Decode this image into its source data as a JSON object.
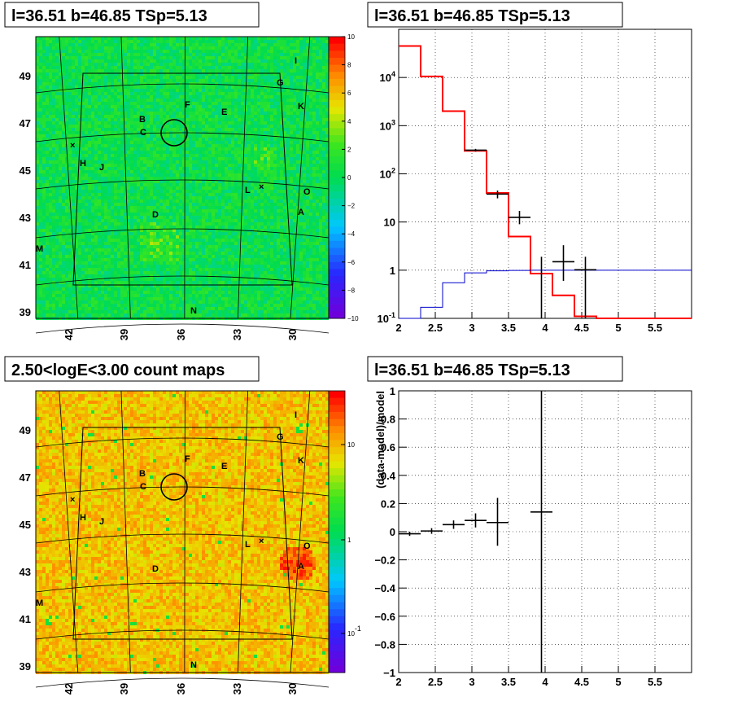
{
  "colors": {
    "model_total": "#ff0000",
    "model_bkg": "#0000cc",
    "data": "#000000"
  },
  "chart_data": [
    {
      "id": "sig-map",
      "type": "heatmap",
      "title": "l=36.51 b=46.85 TSp=5.13",
      "xlabel": "",
      "ylabel": "",
      "x_ticks": [
        "42",
        "39",
        "36",
        "33",
        "30"
      ],
      "y_ticks": [
        "49",
        "47",
        "45",
        "43",
        "41",
        "39"
      ],
      "colorbar": {
        "range": [
          -10,
          10
        ],
        "ticks": [
          "10",
          "8",
          "6",
          "4",
          "2",
          "0",
          "−2",
          "−4",
          "−6",
          "−8",
          "−10"
        ]
      },
      "sources": [
        "I",
        "G",
        "F",
        "E",
        "K",
        "B",
        "C",
        "H",
        "J",
        "L",
        "O",
        "A",
        "D",
        "M",
        "N"
      ]
    },
    {
      "id": "spectrum",
      "type": "line",
      "title": "l=36.51 b=46.85 TSp=5.13",
      "xlabel": "",
      "ylabel": "",
      "log_y": true,
      "xlim": [
        2,
        6
      ],
      "ylim": [
        0.1,
        100000
      ],
      "x_ticks": [
        "2",
        "2.5",
        "3",
        "3.5",
        "4",
        "4.5",
        "5",
        "5.5"
      ],
      "y_ticks": [
        "10^{-1}",
        "1",
        "10",
        "10^{2}",
        "10^{3}",
        "10^{4}"
      ],
      "bin_edges": [
        2.0,
        2.3,
        2.6,
        2.9,
        3.2,
        3.5,
        3.8,
        4.1,
        4.4,
        4.7,
        5.0,
        5.3,
        5.6,
        5.9,
        6.0
      ],
      "series": [
        {
          "style": "step",
          "color": "red",
          "values": [
            45000,
            10500,
            2000,
            300,
            40,
            5,
            0.85,
            0.3,
            0.11,
            0.1,
            0.1,
            0.1,
            0.1,
            0.1
          ]
        },
        {
          "style": "step",
          "color": "blue",
          "values": [
            0.1,
            0.17,
            0.55,
            0.88,
            0.97,
            0.99,
            1.0,
            1.0,
            1.0,
            1.0,
            1.0,
            1.0,
            1.0,
            1.0
          ]
        },
        {
          "style": "errorbar",
          "color": "black",
          "points": [
            {
              "x": 3.05,
              "y": 310,
              "xerr": 0.15,
              "ylo": 290,
              "yhi": 330
            },
            {
              "x": 3.35,
              "y": 38,
              "xerr": 0.15,
              "ylo": 31,
              "yhi": 45
            },
            {
              "x": 3.65,
              "y": 12.5,
              "xerr": 0.15,
              "ylo": 9,
              "yhi": 17
            },
            {
              "x": 3.95,
              "y": 0.5,
              "xerr": 0.0,
              "ylo": 0.1,
              "yhi": 1.9
            },
            {
              "x": 4.25,
              "y": 1.5,
              "xerr": 0.15,
              "ylo": 0.6,
              "yhi": 3.3
            },
            {
              "x": 4.55,
              "y": 1.02,
              "xerr": 0.15,
              "ylo": 0.1,
              "yhi": 1.9
            }
          ]
        }
      ]
    },
    {
      "id": "count-map",
      "type": "heatmap",
      "title": "2.50<logE<3.00 count maps",
      "xlabel": "",
      "ylabel": "",
      "x_ticks": [
        "42",
        "39",
        "36",
        "33",
        "30"
      ],
      "y_ticks": [
        "49",
        "47",
        "45",
        "43",
        "41",
        "39"
      ],
      "colorbar": {
        "log": true,
        "ticks": [
          "10",
          "1",
          "10^{-1}"
        ]
      },
      "sources": [
        "I",
        "G",
        "F",
        "E",
        "K",
        "B",
        "C",
        "H",
        "J",
        "L",
        "O",
        "A",
        "D",
        "M",
        "N"
      ]
    },
    {
      "id": "residual",
      "type": "scatter",
      "title": "l=36.51 b=46.85 TSp=5.13",
      "xlabel": "",
      "ylabel": "(data-model)/model",
      "xlim": [
        2,
        6
      ],
      "ylim": [
        -1,
        1
      ],
      "x_ticks": [
        "2",
        "2.5",
        "3",
        "3.5",
        "4",
        "4.5",
        "5",
        "5.5"
      ],
      "y_ticks": [
        "1",
        "0.8",
        "0.6",
        "0.4",
        "0.2",
        "0",
        "−0.2",
        "−0.4",
        "−0.6",
        "−0.8",
        "−1"
      ],
      "points": [
        {
          "x": 2.15,
          "y": -0.015,
          "xerr": 0.15,
          "ylo": -0.03,
          "yhi": 0.0
        },
        {
          "x": 2.45,
          "y": 0.005,
          "xerr": 0.15,
          "ylo": -0.015,
          "yhi": 0.025
        },
        {
          "x": 2.75,
          "y": 0.05,
          "xerr": 0.15,
          "ylo": 0.02,
          "yhi": 0.08
        },
        {
          "x": 3.05,
          "y": 0.08,
          "xerr": 0.15,
          "ylo": 0.03,
          "yhi": 0.13
        },
        {
          "x": 3.35,
          "y": 0.065,
          "xerr": 0.15,
          "ylo": -0.1,
          "yhi": 0.24
        },
        {
          "x": 3.95,
          "y": 0.14,
          "xerr": 0.15,
          "ylo": -1.0,
          "yhi": 1.0
        }
      ]
    }
  ]
}
